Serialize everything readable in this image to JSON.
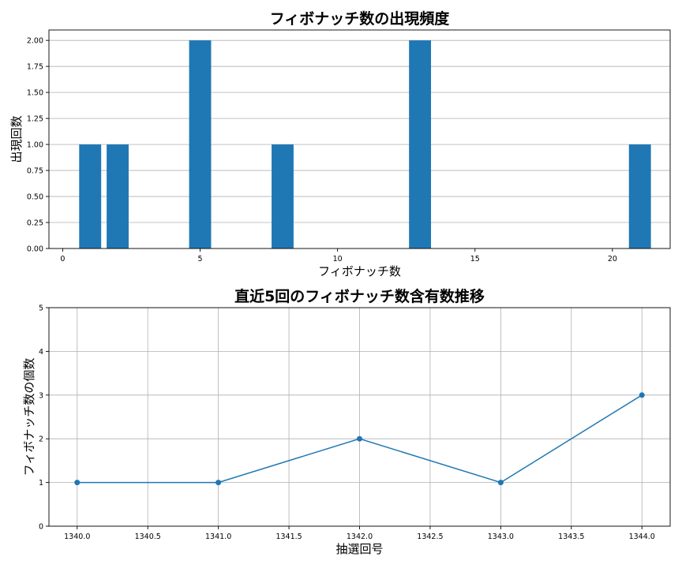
{
  "chart_data": [
    {
      "type": "bar",
      "title": "フィボナッチ数の出現頻度",
      "xlabel": "フィボナッチ数",
      "ylabel": "出現回数",
      "x": [
        1,
        2,
        5,
        8,
        13,
        21
      ],
      "values": [
        1,
        1,
        2,
        1,
        2,
        1
      ],
      "xlim": [
        -0.5,
        22.1
      ],
      "ylim": [
        0,
        2.1
      ],
      "xticks": [
        0,
        5,
        10,
        15,
        20
      ],
      "xtick_labels": [
        "0",
        "5",
        "10",
        "15",
        "20"
      ],
      "yticks": [
        0,
        0.25,
        0.5,
        0.75,
        1.0,
        1.25,
        1.5,
        1.75,
        2.0
      ],
      "ytick_labels": [
        "0.00",
        "0.25",
        "0.50",
        "0.75",
        "1.00",
        "1.25",
        "1.50",
        "1.75",
        "2.00"
      ],
      "bar_width": 0.8,
      "color": "#1f77b4",
      "grid": "y"
    },
    {
      "type": "line",
      "title": "直近5回のフィボナッチ数含有数推移",
      "xlabel": "抽選回号",
      "ylabel": "フィボナッチ数の個数",
      "x": [
        1340,
        1341,
        1342,
        1343,
        1344
      ],
      "y": [
        1,
        1,
        2,
        1,
        3
      ],
      "xlim": [
        1339.8,
        1344.2
      ],
      "ylim": [
        0,
        5
      ],
      "xticks": [
        1340,
        1340.5,
        1341,
        1341.5,
        1342,
        1342.5,
        1343,
        1343.5,
        1344
      ],
      "xtick_labels": [
        "1340.0",
        "1340.5",
        "1341.0",
        "1341.5",
        "1342.0",
        "1342.5",
        "1343.0",
        "1343.5",
        "1344.0"
      ],
      "yticks": [
        0,
        1,
        2,
        3,
        4,
        5
      ],
      "ytick_labels": [
        "0",
        "1",
        "2",
        "3",
        "4",
        "5"
      ],
      "marker": "circle",
      "color": "#1f77b4",
      "grid": "both"
    }
  ]
}
